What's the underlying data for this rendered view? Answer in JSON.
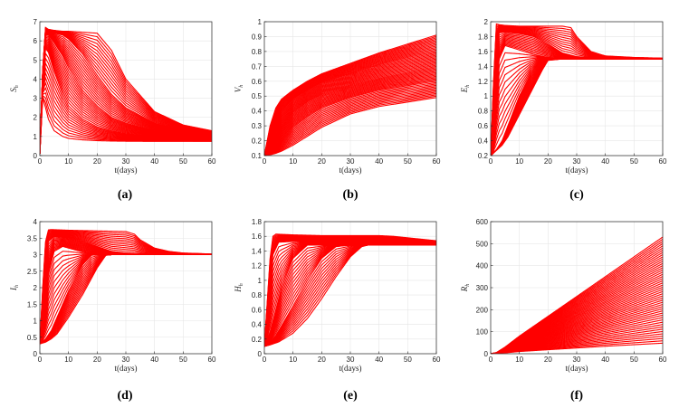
{
  "chart_data": [
    {
      "type": "line",
      "caption": "(a)",
      "xlabel": "t(days)",
      "ylabel": "S",
      "ylabel_sub": "h",
      "xlim": [
        0,
        60
      ],
      "ylim": [
        0,
        7
      ],
      "xticks": [
        0,
        10,
        20,
        30,
        40,
        50,
        60
      ],
      "yticks": [
        0,
        1,
        2,
        3,
        4,
        5,
        6,
        7
      ],
      "grid": true,
      "color": "#ff0000",
      "series": [
        {
          "x": [
            0,
            1,
            2,
            3,
            5,
            8,
            10,
            15,
            20,
            25,
            30,
            40,
            50,
            60
          ],
          "y": [
            0.1,
            4.5,
            6.7,
            6.6,
            6.55,
            6.5,
            6.5,
            6.45,
            6.4,
            5.5,
            4.0,
            2.3,
            1.6,
            1.3
          ]
        },
        {
          "x": [
            0,
            1,
            2,
            3,
            5,
            8,
            10,
            15,
            20,
            25,
            30,
            40,
            50,
            60
          ],
          "y": [
            0.1,
            4.4,
            6.5,
            6.5,
            6.4,
            6.3,
            6.1,
            5.3,
            4.2,
            3.2,
            2.5,
            1.7,
            1.3,
            1.15
          ]
        },
        {
          "x": [
            0,
            1,
            2,
            3,
            5,
            8,
            10,
            15,
            20,
            25,
            30,
            40,
            50,
            60
          ],
          "y": [
            0.1,
            4.2,
            6.3,
            6.3,
            5.9,
            5.2,
            4.6,
            3.4,
            2.6,
            2.0,
            1.7,
            1.3,
            1.1,
            1.0
          ]
        },
        {
          "x": [
            0,
            1,
            2,
            3,
            5,
            8,
            10,
            15,
            20,
            25,
            30,
            40,
            50,
            60
          ],
          "y": [
            0.1,
            3.8,
            5.6,
            5.4,
            4.4,
            3.2,
            2.6,
            1.9,
            1.5,
            1.3,
            1.15,
            1.0,
            0.95,
            0.9
          ]
        },
        {
          "x": [
            0,
            1,
            2,
            3,
            5,
            8,
            10,
            15,
            20,
            25,
            30,
            40,
            50,
            60
          ],
          "y": [
            0.1,
            3.0,
            2.5,
            1.9,
            1.3,
            1.0,
            0.9,
            0.82,
            0.78,
            0.76,
            0.75,
            0.74,
            0.74,
            0.74
          ]
        }
      ]
    },
    {
      "type": "line",
      "caption": "(b)",
      "xlabel": "t(days)",
      "ylabel": "V",
      "ylabel_sub": "h",
      "xlim": [
        0,
        60
      ],
      "ylim": [
        0.1,
        1
      ],
      "xticks": [
        0,
        10,
        20,
        30,
        40,
        50,
        60
      ],
      "yticks": [
        0.1,
        0.2,
        0.3,
        0.4,
        0.5,
        0.6,
        0.7,
        0.8,
        0.9,
        1
      ],
      "grid": true,
      "color": "#ff0000",
      "series": [
        {
          "x": [
            0,
            2,
            4,
            6,
            10,
            15,
            20,
            30,
            40,
            50,
            60
          ],
          "y": [
            0.1,
            0.3,
            0.42,
            0.48,
            0.54,
            0.6,
            0.65,
            0.72,
            0.79,
            0.85,
            0.91
          ]
        },
        {
          "x": [
            0,
            2,
            4,
            6,
            10,
            15,
            20,
            30,
            40,
            50,
            60
          ],
          "y": [
            0.1,
            0.22,
            0.33,
            0.4,
            0.48,
            0.54,
            0.59,
            0.65,
            0.71,
            0.76,
            0.8
          ]
        },
        {
          "x": [
            0,
            2,
            4,
            6,
            10,
            15,
            20,
            30,
            40,
            50,
            60
          ],
          "y": [
            0.1,
            0.16,
            0.24,
            0.3,
            0.39,
            0.46,
            0.51,
            0.57,
            0.62,
            0.66,
            0.7
          ]
        },
        {
          "x": [
            0,
            2,
            4,
            6,
            10,
            15,
            20,
            30,
            40,
            50,
            60
          ],
          "y": [
            0.1,
            0.12,
            0.16,
            0.21,
            0.29,
            0.36,
            0.42,
            0.49,
            0.54,
            0.57,
            0.6
          ]
        },
        {
          "x": [
            0,
            2,
            4,
            6,
            10,
            15,
            20,
            30,
            40,
            50,
            60
          ],
          "y": [
            0.1,
            0.105,
            0.115,
            0.13,
            0.17,
            0.23,
            0.29,
            0.38,
            0.43,
            0.46,
            0.49
          ]
        }
      ]
    },
    {
      "type": "line",
      "caption": "(c)",
      "xlabel": "t(days)",
      "ylabel": "E",
      "ylabel_sub": "h",
      "xlim": [
        0,
        60
      ],
      "ylim": [
        0.2,
        2
      ],
      "xticks": [
        0,
        10,
        20,
        30,
        40,
        50,
        60
      ],
      "yticks": [
        0.2,
        0.4,
        0.6,
        0.8,
        1,
        1.2,
        1.4,
        1.6,
        1.8,
        2
      ],
      "grid": true,
      "color": "#ff0000",
      "series": [
        {
          "x": [
            0,
            1,
            2,
            3,
            5,
            10,
            20,
            25,
            28,
            30,
            35,
            40,
            50,
            60
          ],
          "y": [
            0.2,
            1.2,
            1.97,
            1.96,
            1.95,
            1.94,
            1.94,
            1.94,
            1.92,
            1.8,
            1.6,
            1.54,
            1.52,
            1.51
          ]
        },
        {
          "x": [
            0,
            1,
            2,
            3,
            5,
            10,
            15,
            20,
            25,
            30,
            40,
            50,
            60
          ],
          "y": [
            0.2,
            0.9,
            1.7,
            1.85,
            1.86,
            1.84,
            1.8,
            1.7,
            1.58,
            1.53,
            1.51,
            1.5,
            1.5
          ]
        },
        {
          "x": [
            0,
            1,
            2,
            3,
            5,
            10,
            15,
            20,
            25,
            30,
            40,
            50,
            60
          ],
          "y": [
            0.2,
            0.5,
            1.1,
            1.5,
            1.68,
            1.62,
            1.56,
            1.52,
            1.51,
            1.5,
            1.5,
            1.5,
            1.5
          ]
        },
        {
          "x": [
            0,
            2,
            4,
            6,
            10,
            14,
            18,
            20,
            25,
            30,
            40,
            50,
            60
          ],
          "y": [
            0.2,
            0.28,
            0.4,
            0.6,
            1.0,
            1.3,
            1.48,
            1.5,
            1.5,
            1.5,
            1.5,
            1.5,
            1.5
          ]
        },
        {
          "x": [
            0,
            2,
            4,
            6,
            10,
            14,
            18,
            20,
            25,
            30,
            40,
            50,
            60
          ],
          "y": [
            0.2,
            0.27,
            0.34,
            0.45,
            0.75,
            1.05,
            1.35,
            1.48,
            1.5,
            1.5,
            1.5,
            1.5,
            1.5
          ]
        }
      ]
    },
    {
      "type": "line",
      "caption": "(d)",
      "xlabel": "t(days)",
      "ylabel": "I",
      "ylabel_sub": "h",
      "xlim": [
        0,
        60
      ],
      "ylim": [
        0,
        4
      ],
      "xticks": [
        0,
        10,
        20,
        30,
        40,
        50,
        60
      ],
      "yticks": [
        0,
        0.5,
        1,
        1.5,
        2,
        2.5,
        3,
        3.5,
        4
      ],
      "grid": true,
      "color": "#ff0000",
      "series": [
        {
          "x": [
            0,
            1,
            2,
            3,
            4,
            10,
            20,
            30,
            33,
            35,
            40,
            45,
            50,
            60
          ],
          "y": [
            0.3,
            2.0,
            3.4,
            3.75,
            3.76,
            3.74,
            3.72,
            3.7,
            3.62,
            3.45,
            3.2,
            3.1,
            3.05,
            3.02
          ]
        },
        {
          "x": [
            0,
            1,
            2,
            3,
            5,
            10,
            15,
            20,
            25,
            30,
            40,
            50,
            60
          ],
          "y": [
            0.3,
            1.5,
            2.8,
            3.4,
            3.55,
            3.5,
            3.4,
            3.25,
            3.1,
            3.05,
            3.02,
            3.0,
            3.0
          ]
        },
        {
          "x": [
            0,
            1,
            2,
            3,
            5,
            8,
            10,
            15,
            20,
            25,
            30,
            40,
            60
          ],
          "y": [
            0.3,
            0.8,
            1.6,
            2.4,
            3.1,
            3.25,
            3.2,
            3.08,
            3.02,
            3.0,
            3.0,
            3.0,
            3.0
          ]
        },
        {
          "x": [
            0,
            2,
            4,
            6,
            10,
            15,
            18,
            20,
            25,
            30,
            40,
            60
          ],
          "y": [
            0.3,
            0.45,
            0.7,
            1.1,
            1.9,
            2.7,
            2.98,
            3.0,
            3.0,
            3.0,
            3.0,
            3.0
          ]
        },
        {
          "x": [
            0,
            2,
            4,
            6,
            10,
            15,
            20,
            23,
            25,
            30,
            40,
            60
          ],
          "y": [
            0.3,
            0.35,
            0.45,
            0.6,
            1.1,
            1.8,
            2.6,
            2.98,
            3.0,
            3.0,
            3.0,
            3.0
          ]
        }
      ]
    },
    {
      "type": "line",
      "caption": "(e)",
      "xlabel": "t(days)",
      "ylabel": "H",
      "ylabel_sub": "h",
      "xlim": [
        0,
        60
      ],
      "ylim": [
        0,
        1.8
      ],
      "xticks": [
        0,
        10,
        20,
        30,
        40,
        50,
        60
      ],
      "yticks": [
        0,
        0.2,
        0.4,
        0.6,
        0.8,
        1,
        1.2,
        1.4,
        1.6,
        1.8
      ],
      "grid": true,
      "color": "#ff0000",
      "series": [
        {
          "x": [
            0,
            1,
            2,
            3,
            4,
            10,
            20,
            30,
            40,
            45,
            50,
            55,
            60
          ],
          "y": [
            0.1,
            0.7,
            1.3,
            1.6,
            1.63,
            1.62,
            1.61,
            1.61,
            1.61,
            1.6,
            1.58,
            1.56,
            1.54
          ]
        },
        {
          "x": [
            0,
            1,
            2,
            3,
            5,
            10,
            20,
            30,
            40,
            50,
            60
          ],
          "y": [
            0.1,
            0.5,
            1.0,
            1.35,
            1.52,
            1.53,
            1.52,
            1.52,
            1.52,
            1.51,
            1.5
          ]
        },
        {
          "x": [
            0,
            2,
            4,
            6,
            10,
            15,
            20,
            25,
            30,
            40,
            50,
            60
          ],
          "y": [
            0.1,
            0.3,
            0.6,
            0.9,
            1.3,
            1.48,
            1.48,
            1.48,
            1.48,
            1.48,
            1.48,
            1.48
          ]
        },
        {
          "x": [
            0,
            2,
            4,
            6,
            10,
            15,
            20,
            25,
            30,
            40,
            50,
            60
          ],
          "y": [
            0.1,
            0.15,
            0.25,
            0.38,
            0.65,
            1.0,
            1.3,
            1.46,
            1.48,
            1.48,
            1.48,
            1.48
          ]
        },
        {
          "x": [
            0,
            2,
            5,
            10,
            15,
            20,
            25,
            30,
            34,
            36,
            40,
            50,
            60
          ],
          "y": [
            0.1,
            0.12,
            0.16,
            0.28,
            0.48,
            0.75,
            1.05,
            1.32,
            1.46,
            1.48,
            1.48,
            1.48,
            1.48
          ]
        }
      ]
    },
    {
      "type": "line",
      "caption": "(f)",
      "xlabel": "t(days)",
      "ylabel": "R",
      "ylabel_sub": "h",
      "xlim": [
        0,
        60
      ],
      "ylim": [
        0,
        600
      ],
      "xticks": [
        0,
        10,
        20,
        30,
        40,
        50,
        60
      ],
      "yticks": [
        0,
        100,
        200,
        300,
        400,
        500,
        600
      ],
      "grid": true,
      "color": "#ff0000",
      "series": [
        {
          "x": [
            0,
            2,
            5,
            10,
            20,
            30,
            40,
            50,
            60
          ],
          "y": [
            0,
            5,
            30,
            80,
            170,
            260,
            350,
            440,
            530
          ]
        },
        {
          "x": [
            0,
            2,
            5,
            10,
            20,
            30,
            40,
            50,
            60
          ],
          "y": [
            0,
            4,
            22,
            60,
            130,
            200,
            270,
            340,
            410
          ]
        },
        {
          "x": [
            0,
            2,
            5,
            10,
            20,
            30,
            40,
            50,
            60
          ],
          "y": [
            0,
            3,
            15,
            42,
            92,
            142,
            192,
            242,
            292
          ]
        },
        {
          "x": [
            0,
            2,
            5,
            10,
            20,
            30,
            40,
            50,
            60
          ],
          "y": [
            0,
            2,
            9,
            25,
            55,
            85,
            115,
            145,
            175
          ]
        },
        {
          "x": [
            0,
            2,
            5,
            10,
            20,
            30,
            40,
            50,
            60
          ],
          "y": [
            0,
            1,
            4,
            10,
            18,
            26,
            34,
            41,
            48
          ]
        }
      ]
    }
  ]
}
